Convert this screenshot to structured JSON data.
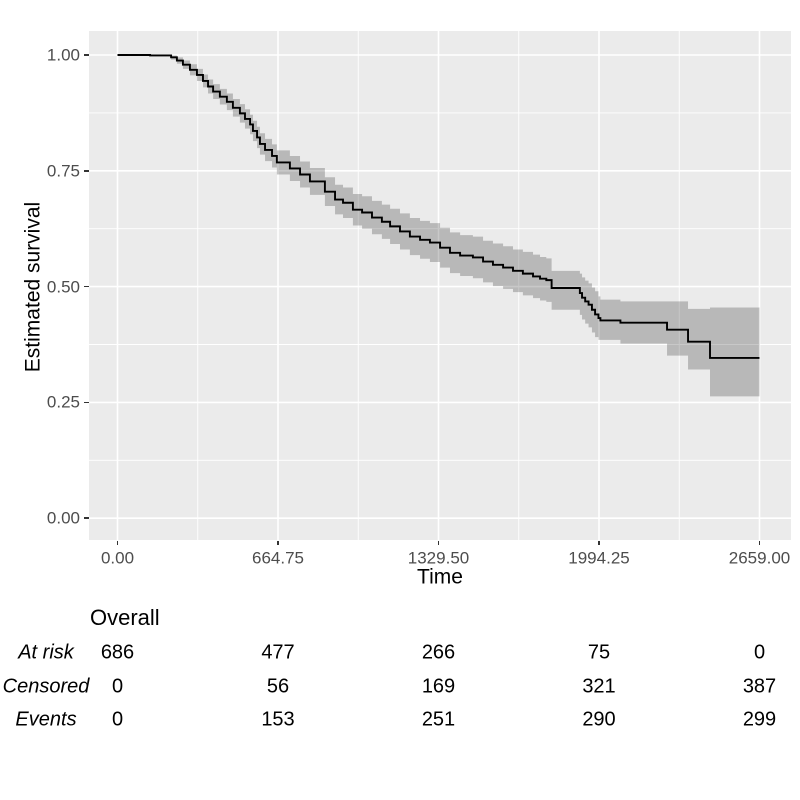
{
  "colors": {
    "background": "#FFFFFF",
    "panel_background": "#EBEBEB",
    "grid": "#FFFFFF",
    "curve": "#000000",
    "confidence_ribbon": "rgba(0,0,0,0.215)",
    "tick_label": "#4D4D4D",
    "tick_mark": "#333333",
    "text": "#000000"
  },
  "chart_data": {
    "type": "line",
    "subtype": "kaplan-meier-step-curve-with-confidence-band",
    "title": "",
    "xlabel": "Time",
    "ylabel": "Estimated survival",
    "xlim": [
      0,
      2659
    ],
    "ylim": [
      0,
      1
    ],
    "grid": "on",
    "legend": "none",
    "x_ticks": [
      0,
      664.75,
      1329.5,
      1994.25,
      2659
    ],
    "x_tick_labels": [
      "0.00",
      "664.75",
      "1329.50",
      "1994.25",
      "2659.00"
    ],
    "x_minor_ticks": [
      332.375,
      997.125,
      1661.875,
      2326.625
    ],
    "y_ticks": [
      1,
      0.75,
      0.5,
      0.25,
      0
    ],
    "y_tick_labels": [
      "1.00",
      "0.75",
      "0.50",
      "0.25",
      "0.00"
    ],
    "y_minor_ticks": [
      0.875,
      0.625,
      0.375,
      0.125
    ],
    "series": [
      {
        "name": "Overall",
        "has_confidence_band": true,
        "points_format": [
          "time",
          "survival",
          "lower_ci",
          "upper_ci"
        ],
        "points": [
          [
            0,
            1,
            1,
            1
          ],
          [
            135,
            0.999,
            0.997,
            1
          ],
          [
            222,
            0.995,
            0.99,
            0.999
          ],
          [
            246,
            0.988,
            0.981,
            0.995
          ],
          [
            271,
            0.979,
            0.97,
            0.988
          ],
          [
            300,
            0.968,
            0.956,
            0.98
          ],
          [
            329,
            0.957,
            0.944,
            0.97
          ],
          [
            354,
            0.944,
            0.93,
            0.958
          ],
          [
            375,
            0.932,
            0.917,
            0.947
          ],
          [
            396,
            0.921,
            0.905,
            0.937
          ],
          [
            424,
            0.91,
            0.893,
            0.927
          ],
          [
            453,
            0.899,
            0.881,
            0.917
          ],
          [
            478,
            0.886,
            0.867,
            0.905
          ],
          [
            507,
            0.874,
            0.854,
            0.894
          ],
          [
            528,
            0.862,
            0.841,
            0.883
          ],
          [
            549,
            0.85,
            0.829,
            0.871
          ],
          [
            561,
            0.836,
            0.814,
            0.858
          ],
          [
            578,
            0.822,
            0.799,
            0.845
          ],
          [
            590,
            0.808,
            0.785,
            0.831
          ],
          [
            611,
            0.795,
            0.771,
            0.819
          ],
          [
            640,
            0.782,
            0.757,
            0.807
          ],
          [
            660,
            0.768,
            0.742,
            0.794
          ],
          [
            714,
            0.755,
            0.728,
            0.782
          ],
          [
            756,
            0.742,
            0.714,
            0.77
          ],
          [
            797,
            0.727,
            0.698,
            0.756
          ],
          [
            859,
            0.705,
            0.674,
            0.736
          ],
          [
            901,
            0.688,
            0.656,
            0.72
          ],
          [
            934,
            0.681,
            0.648,
            0.714
          ],
          [
            975,
            0.666,
            0.632,
            0.7
          ],
          [
            1013,
            0.66,
            0.625,
            0.695
          ],
          [
            1054,
            0.649,
            0.613,
            0.685
          ],
          [
            1095,
            0.64,
            0.603,
            0.677
          ],
          [
            1129,
            0.63,
            0.592,
            0.668
          ],
          [
            1170,
            0.619,
            0.58,
            0.658
          ],
          [
            1211,
            0.608,
            0.568,
            0.648
          ],
          [
            1253,
            0.601,
            0.56,
            0.642
          ],
          [
            1294,
            0.595,
            0.553,
            0.637
          ],
          [
            1336,
            0.584,
            0.541,
            0.627
          ],
          [
            1377,
            0.573,
            0.529,
            0.617
          ],
          [
            1419,
            0.567,
            0.523,
            0.611
          ],
          [
            1472,
            0.563,
            0.518,
            0.608
          ],
          [
            1514,
            0.554,
            0.509,
            0.599
          ],
          [
            1555,
            0.547,
            0.501,
            0.593
          ],
          [
            1597,
            0.541,
            0.495,
            0.587
          ],
          [
            1638,
            0.534,
            0.488,
            0.58
          ],
          [
            1679,
            0.528,
            0.481,
            0.575
          ],
          [
            1721,
            0.522,
            0.475,
            0.569
          ],
          [
            1750,
            0.517,
            0.47,
            0.564
          ],
          [
            1776,
            0.514,
            0.467,
            0.561
          ],
          [
            1798,
            0.497,
            0.45,
            0.534
          ],
          [
            1915,
            0.486,
            0.439,
            0.528
          ],
          [
            1924,
            0.476,
            0.429,
            0.52
          ],
          [
            1937,
            0.468,
            0.42,
            0.513
          ],
          [
            1951,
            0.461,
            0.412,
            0.507
          ],
          [
            1965,
            0.45,
            0.401,
            0.498
          ],
          [
            1978,
            0.44,
            0.391,
            0.49
          ],
          [
            1992,
            0.432,
            0.385,
            0.479
          ],
          [
            2000,
            0.427,
            0.385,
            0.472
          ],
          [
            2083,
            0.422,
            0.377,
            0.468
          ],
          [
            2276,
            0.407,
            0.351,
            0.468
          ],
          [
            2363,
            0.381,
            0.321,
            0.452
          ],
          [
            2454,
            0.346,
            0.263,
            0.455
          ],
          [
            2659,
            0.346,
            0.263,
            0.455
          ]
        ]
      }
    ],
    "risk_table": {
      "header": "Overall",
      "time_points": [
        0,
        664.75,
        1329.5,
        1994.25,
        2659
      ],
      "rows": [
        {
          "label": "At risk",
          "values": [
            "686",
            "477",
            "266",
            "75",
            "0"
          ]
        },
        {
          "label": "Censored",
          "values": [
            "0",
            "56",
            "169",
            "321",
            "387"
          ]
        },
        {
          "label": "Events",
          "values": [
            "0",
            "153",
            "251",
            "290",
            "299"
          ]
        }
      ]
    }
  }
}
